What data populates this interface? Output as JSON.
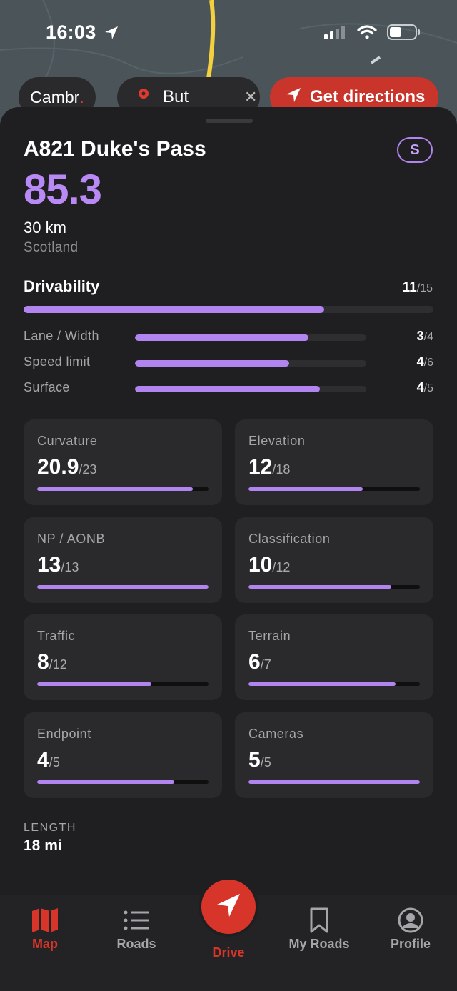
{
  "status": {
    "time": "16:03"
  },
  "top_pills": {
    "city": "Cambr",
    "city_dot": ".",
    "search": "But",
    "directions": "Get directions"
  },
  "road": {
    "name": "A821 Duke's Pass",
    "badge": "S",
    "score": "85.3",
    "distance": "30 km",
    "region": "Scotland"
  },
  "drivability": {
    "label": "Drivability",
    "value": "11",
    "max": "/15",
    "fraction": 0.733,
    "items": [
      {
        "label": "Lane / Width",
        "value": "3",
        "max": "/4",
        "fraction": 0.75
      },
      {
        "label": "Speed limit",
        "value": "4",
        "max": "/6",
        "fraction": 0.667
      },
      {
        "label": "Surface",
        "value": "4",
        "max": "/5",
        "fraction": 0.8
      }
    ]
  },
  "metrics": [
    {
      "label": "Curvature",
      "value": "20.9",
      "max": "/23",
      "fraction": 0.909
    },
    {
      "label": "Elevation",
      "value": "12",
      "max": "/18",
      "fraction": 0.667
    },
    {
      "label": "NP / AONB",
      "value": "13",
      "max": "/13",
      "fraction": 1.0
    },
    {
      "label": "Classification",
      "value": "10",
      "max": "/12",
      "fraction": 0.833
    },
    {
      "label": "Traffic",
      "value": "8",
      "max": "/12",
      "fraction": 0.667
    },
    {
      "label": "Terrain",
      "value": "6",
      "max": "/7",
      "fraction": 0.857
    },
    {
      "label": "Endpoint",
      "value": "4",
      "max": "/5",
      "fraction": 0.8
    },
    {
      "label": "Cameras",
      "value": "5",
      "max": "/5",
      "fraction": 1.0
    }
  ],
  "length": {
    "label": "LENGTH",
    "value": "18 mi"
  },
  "tabbar": {
    "map": "Map",
    "roads": "Roads",
    "drive": "Drive",
    "my_roads": "My Roads",
    "profile": "Profile"
  },
  "colors": {
    "accent": "#b184f0",
    "brand_red": "#d7352a",
    "background": "#1f1f21"
  },
  "icons": [
    "location-arrow-icon",
    "signal-icon",
    "wifi-icon",
    "battery-icon",
    "pin-icon",
    "close-icon",
    "navigation-arrow-icon",
    "map-icon",
    "list-icon",
    "bookmark-icon",
    "profile-icon"
  ]
}
